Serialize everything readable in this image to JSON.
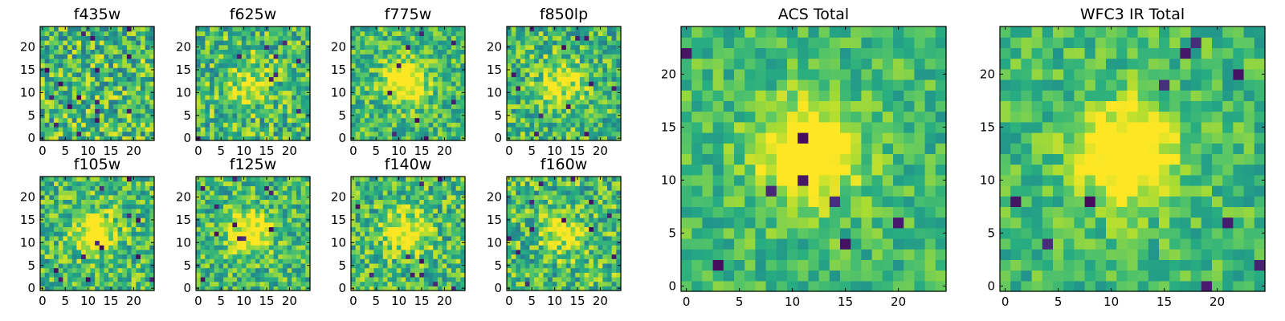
{
  "chart_data": {
    "type": "heatmap",
    "colormap": "viridis",
    "grid_size": 25,
    "panels": [
      {
        "id": "f435w",
        "title": "f435w",
        "x_ticks": [
          "0",
          "5",
          "10",
          "15",
          "20"
        ],
        "y_ticks": [
          "0",
          "5",
          "10",
          "15",
          "20"
        ],
        "center_peak": 0.0,
        "noise": 1.0,
        "dark_spots": 16
      },
      {
        "id": "f625w",
        "title": "f625w",
        "x_ticks": [
          "0",
          "5",
          "10",
          "15",
          "20"
        ],
        "y_ticks": [
          "0",
          "5",
          "10",
          "15",
          "20"
        ],
        "center_peak": 0.25,
        "noise": 0.9,
        "dark_spots": 9
      },
      {
        "id": "f775w",
        "title": "f775w",
        "x_ticks": [
          "0",
          "5",
          "10",
          "15",
          "20"
        ],
        "y_ticks": [
          "0",
          "5",
          "10",
          "15",
          "20"
        ],
        "center_peak": 0.5,
        "noise": 0.75,
        "dark_spots": 9
      },
      {
        "id": "f850lp",
        "title": "f850lp",
        "x_ticks": [
          "0",
          "5",
          "10",
          "15",
          "20"
        ],
        "y_ticks": [
          "0",
          "5",
          "10",
          "15",
          "20"
        ],
        "center_peak": 0.35,
        "noise": 0.85,
        "dark_spots": 12
      },
      {
        "id": "f105w",
        "title": "f105w",
        "x_ticks": [
          "0",
          "5",
          "10",
          "15",
          "20"
        ],
        "y_ticks": [
          "0",
          "5",
          "10",
          "15",
          "20"
        ],
        "center_peak": 0.4,
        "noise": 0.85,
        "dark_spots": 13
      },
      {
        "id": "f125w",
        "title": "f125w",
        "x_ticks": [
          "0",
          "5",
          "10",
          "15",
          "20"
        ],
        "y_ticks": [
          "0",
          "5",
          "10",
          "15",
          "20"
        ],
        "center_peak": 0.45,
        "noise": 0.8,
        "dark_spots": 11
      },
      {
        "id": "f140w",
        "title": "f140w",
        "x_ticks": [
          "0",
          "5",
          "10",
          "15",
          "20"
        ],
        "y_ticks": [
          "0",
          "5",
          "10",
          "15",
          "20"
        ],
        "center_peak": 0.4,
        "noise": 0.85,
        "dark_spots": 11
      },
      {
        "id": "f160w",
        "title": "f160w",
        "x_ticks": [
          "0",
          "5",
          "10",
          "15",
          "20"
        ],
        "y_ticks": [
          "0",
          "5",
          "10",
          "15",
          "20"
        ],
        "center_peak": 0.35,
        "noise": 0.9,
        "dark_spots": 12
      },
      {
        "id": "acs-total",
        "title": "ACS Total",
        "x_ticks": [
          "0",
          "5",
          "10",
          "15",
          "20"
        ],
        "y_ticks": [
          "0",
          "5",
          "10",
          "15",
          "20"
        ],
        "center_peak": 0.55,
        "noise": 0.55,
        "dark_spots": 9
      },
      {
        "id": "wfc3-ir-total",
        "title": "WFC3 IR Total",
        "x_ticks": [
          "0",
          "5",
          "10",
          "15",
          "20"
        ],
        "y_ticks": [
          "0",
          "5",
          "10",
          "15",
          "20"
        ],
        "center_peak": 0.6,
        "noise": 0.55,
        "dark_spots": 10
      }
    ]
  }
}
